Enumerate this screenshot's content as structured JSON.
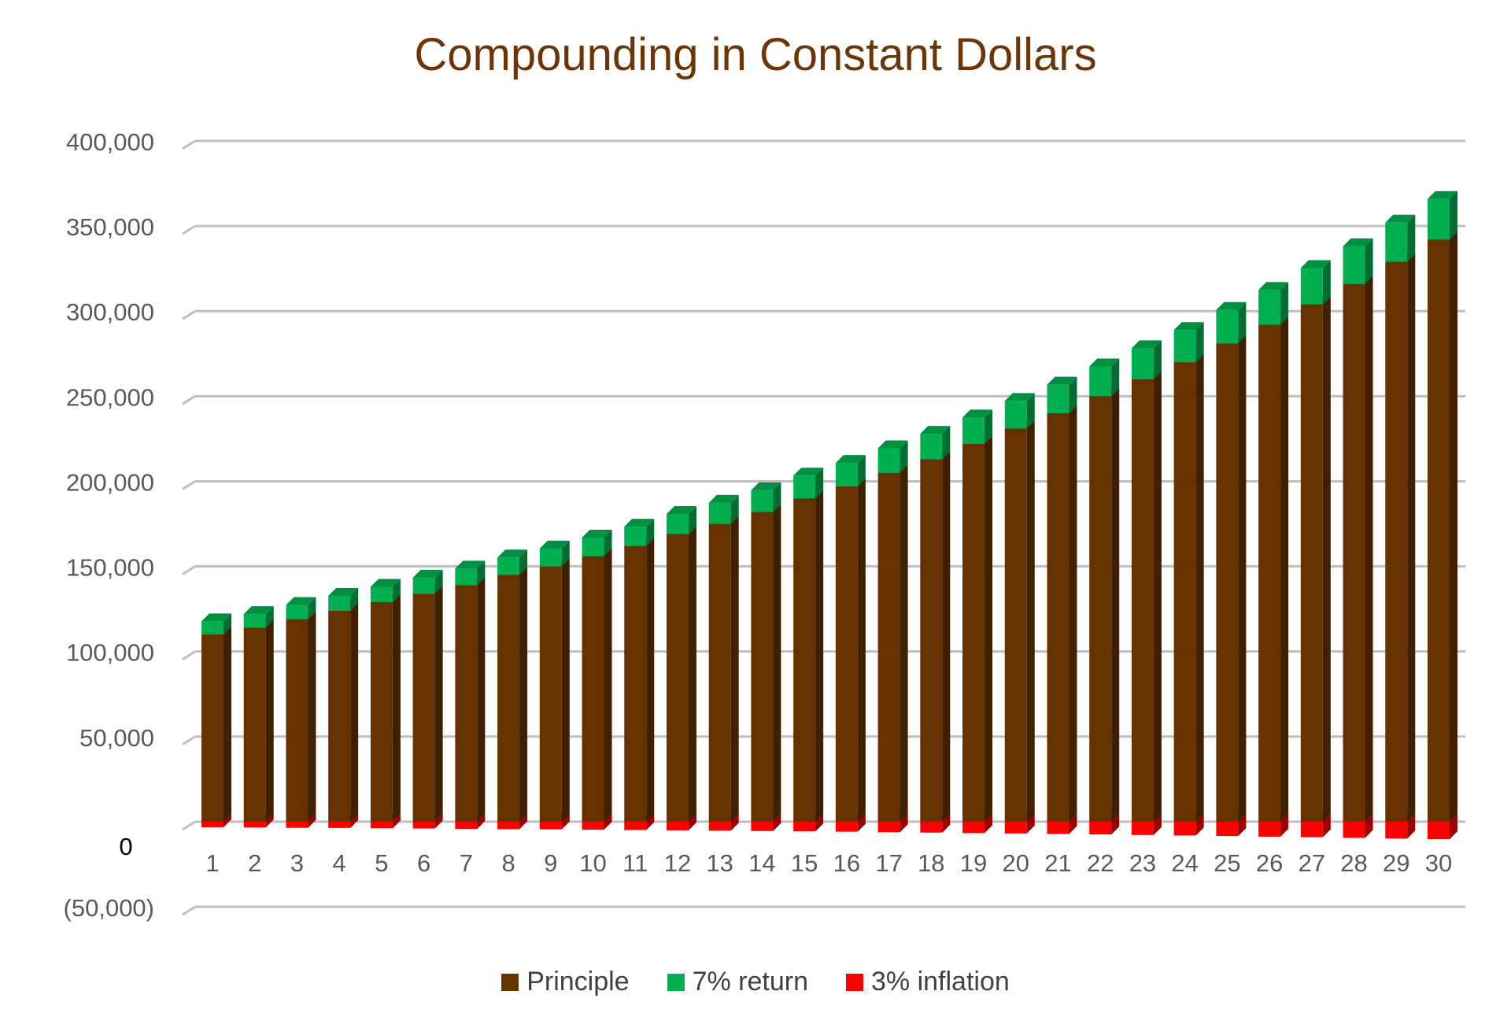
{
  "chart_data": {
    "type": "bar",
    "stacked": true,
    "title": "Compounding in Constant Dollars",
    "xlabel": "",
    "ylabel": "",
    "ylim": [
      -50000,
      400000
    ],
    "yticks": [
      "(50,000)",
      "0",
      "50,000",
      "100,000",
      "150,000",
      "200,000",
      "250,000",
      "300,000",
      "350,000",
      "400,000"
    ],
    "ytick_values": [
      -50000,
      0,
      50000,
      100000,
      150000,
      200000,
      250000,
      300000,
      350000,
      400000
    ],
    "grid": true,
    "legend_position": "bottom",
    "categories": [
      "1",
      "2",
      "3",
      "4",
      "5",
      "6",
      "7",
      "8",
      "9",
      "10",
      "11",
      "12",
      "13",
      "14",
      "15",
      "16",
      "17",
      "18",
      "19",
      "20",
      "21",
      "22",
      "23",
      "24",
      "25",
      "26",
      "27",
      "28",
      "29",
      "30"
    ],
    "series": [
      {
        "name": "Principle",
        "color": "#663300",
        "values": [
          110000,
          114000,
          119000,
          124000,
          129000,
          134000,
          139000,
          145000,
          150000,
          156000,
          162000,
          169000,
          175000,
          182000,
          190000,
          197000,
          205000,
          213000,
          222000,
          231000,
          240000,
          250000,
          260000,
          270000,
          281000,
          292000,
          304000,
          316000,
          329000,
          342000
        ]
      },
      {
        "name": "7% return",
        "color": "#00b050",
        "values": [
          7700,
          8000,
          8300,
          8700,
          9000,
          9400,
          9700,
          10200,
          10500,
          10900,
          11300,
          11800,
          12300,
          12700,
          13300,
          13800,
          14400,
          14900,
          15500,
          16200,
          16800,
          17500,
          18200,
          18900,
          19700,
          20400,
          21300,
          22100,
          23000,
          23900
        ]
      },
      {
        "name": "3% inflation",
        "color": "#ff0000",
        "values": [
          -3300,
          -3400,
          -3600,
          -3700,
          -3900,
          -4000,
          -4200,
          -4400,
          -4500,
          -4700,
          -4900,
          -5100,
          -5300,
          -5500,
          -5700,
          -5900,
          -6200,
          -6400,
          -6700,
          -6900,
          -7200,
          -7500,
          -7800,
          -8100,
          -8400,
          -8800,
          -9100,
          -9500,
          -9900,
          -10300
        ]
      }
    ]
  }
}
